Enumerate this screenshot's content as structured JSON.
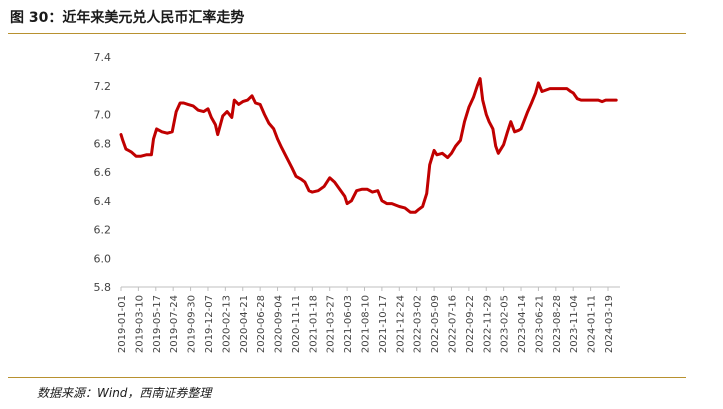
{
  "header": {
    "title": "图 30：近年来美元兑人民币汇率走势"
  },
  "footer": {
    "source": "数据来源：Wind，西南证券整理"
  },
  "colors": {
    "line": "#c00000",
    "rule": "#b8912f",
    "axis": "#bfbfbf"
  },
  "chart_data": {
    "type": "line",
    "title": "",
    "xlabel": "",
    "ylabel": "",
    "ylim": [
      5.8,
      7.4
    ],
    "yticks": [
      "5.8",
      "6.0",
      "6.2",
      "6.4",
      "6.6",
      "6.8",
      "7.0",
      "7.2",
      "7.4"
    ],
    "grid": false,
    "legend": "none",
    "xticks": [
      "2019-01-01",
      "2019-03-10",
      "2019-05-17",
      "2019-07-24",
      "2019-09-30",
      "2019-12-07",
      "2020-02-13",
      "2020-04-21",
      "2020-06-28",
      "2020-09-04",
      "2020-11-11",
      "2021-01-18",
      "2021-03-27",
      "2021-06-03",
      "2021-08-10",
      "2021-10-17",
      "2021-12-24",
      "2022-03-02",
      "2022-05-09",
      "2022-07-16",
      "2022-09-22",
      "2022-11-29",
      "2023-02-05",
      "2023-04-14",
      "2023-06-21",
      "2023-08-28",
      "2023-11-04",
      "2024-01-11",
      "2024-03-19"
    ],
    "series": [
      {
        "x": [
          "2019-01-01",
          "2019-01-08",
          "2019-01-20",
          "2019-02-10",
          "2019-03-01",
          "2019-03-20",
          "2019-04-10",
          "2019-04-30",
          "2019-05-08",
          "2019-05-20",
          "2019-06-10",
          "2019-07-01",
          "2019-07-20",
          "2019-08-05",
          "2019-08-20",
          "2019-09-03",
          "2019-09-20",
          "2019-10-10",
          "2019-10-30",
          "2019-11-20",
          "2019-12-07",
          "2019-12-20",
          "2020-01-05",
          "2020-01-14",
          "2020-02-03",
          "2020-02-20",
          "2020-03-09",
          "2020-03-19",
          "2020-04-05",
          "2020-04-21",
          "2020-05-10",
          "2020-05-27",
          "2020-06-10",
          "2020-06-28",
          "2020-07-15",
          "2020-08-01",
          "2020-08-20",
          "2020-09-04",
          "2020-09-20",
          "2020-10-10",
          "2020-10-30",
          "2020-11-15",
          "2020-12-05",
          "2020-12-20",
          "2021-01-05",
          "2021-01-18",
          "2021-02-10",
          "2021-03-05",
          "2021-03-27",
          "2021-04-15",
          "2021-05-05",
          "2021-05-25",
          "2021-06-03",
          "2021-06-20",
          "2021-07-10",
          "2021-08-01",
          "2021-08-20",
          "2021-09-10",
          "2021-10-01",
          "2021-10-17",
          "2021-11-05",
          "2021-11-25",
          "2021-12-10",
          "2021-12-24",
          "2022-01-15",
          "2022-02-05",
          "2022-02-25",
          "2022-03-10",
          "2022-03-25",
          "2022-04-10",
          "2022-04-22",
          "2022-05-09",
          "2022-05-20",
          "2022-06-10",
          "2022-07-01",
          "2022-07-16",
          "2022-08-01",
          "2022-08-20",
          "2022-09-05",
          "2022-09-22",
          "2022-10-10",
          "2022-10-25",
          "2022-11-05",
          "2022-11-15",
          "2022-11-29",
          "2022-12-10",
          "2022-12-25",
          "2023-01-05",
          "2023-01-15",
          "2023-02-05",
          "2023-02-20",
          "2023-03-05",
          "2023-03-20",
          "2023-04-05",
          "2023-04-14",
          "2023-04-25",
          "2023-05-10",
          "2023-05-25",
          "2023-06-10",
          "2023-06-21",
          "2023-07-05",
          "2023-07-20",
          "2023-08-05",
          "2023-08-28",
          "2023-09-10",
          "2023-09-25",
          "2023-10-10",
          "2023-10-25",
          "2023-11-04",
          "2023-11-20",
          "2023-12-05",
          "2023-12-20",
          "2024-01-11",
          "2024-01-25",
          "2024-02-10",
          "2024-02-25",
          "2024-03-10",
          "2024-03-19",
          "2024-04-05",
          "2024-04-20"
        ],
        "values": [
          6.86,
          6.82,
          6.76,
          6.74,
          6.71,
          6.71,
          6.72,
          6.72,
          6.83,
          6.9,
          6.88,
          6.87,
          6.88,
          7.02,
          7.08,
          7.08,
          7.07,
          7.06,
          7.03,
          7.02,
          7.04,
          6.98,
          6.93,
          6.86,
          6.99,
          7.02,
          6.98,
          7.1,
          7.07,
          7.09,
          7.1,
          7.13,
          7.08,
          7.07,
          7.0,
          6.94,
          6.9,
          6.83,
          6.77,
          6.7,
          6.63,
          6.57,
          6.55,
          6.53,
          6.47,
          6.46,
          6.47,
          6.5,
          6.56,
          6.53,
          6.48,
          6.43,
          6.38,
          6.4,
          6.47,
          6.48,
          6.48,
          6.46,
          6.47,
          6.4,
          6.38,
          6.38,
          6.37,
          6.36,
          6.35,
          6.32,
          6.32,
          6.34,
          6.36,
          6.45,
          6.65,
          6.75,
          6.72,
          6.73,
          6.7,
          6.73,
          6.78,
          6.82,
          6.95,
          7.05,
          7.12,
          7.2,
          7.25,
          7.1,
          7.0,
          6.95,
          6.9,
          6.78,
          6.73,
          6.79,
          6.88,
          6.95,
          6.88,
          6.89,
          6.9,
          6.95,
          7.02,
          7.08,
          7.15,
          7.22,
          7.16,
          7.17,
          7.18,
          7.18,
          7.18,
          7.18,
          7.18,
          7.16,
          7.15,
          7.11,
          7.1,
          7.1,
          7.1,
          7.1,
          7.1,
          7.09,
          7.1,
          7.1,
          7.1,
          7.1
        ]
      }
    ]
  }
}
